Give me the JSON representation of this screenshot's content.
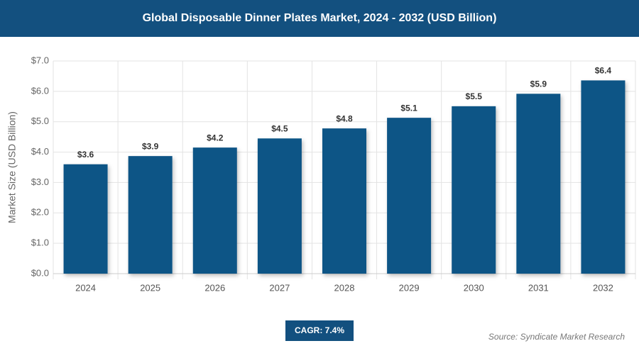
{
  "chart_data": {
    "type": "bar",
    "title": "Global Disposable Dinner Plates Market, 2024 - 2032 (USD Billion)",
    "y_label": "Market Size (USD Billion)",
    "categories": [
      "2024",
      "2025",
      "2026",
      "2027",
      "2028",
      "2029",
      "2030",
      "2031",
      "2032"
    ],
    "values": [
      3.6,
      3.87,
      4.15,
      4.45,
      4.78,
      5.13,
      5.51,
      5.92,
      6.36
    ],
    "value_labels": [
      "$3.6",
      "$3.9",
      "$4.2",
      "$4.5",
      "$4.8",
      "$5.1",
      "$5.5",
      "$5.9",
      "$6.4"
    ],
    "color": "#0d5486",
    "ylim": [
      0,
      7
    ],
    "yticks": [
      {
        "value": 0,
        "label": "$0.0"
      },
      {
        "value": 1,
        "label": "$1.0"
      },
      {
        "value": 2,
        "label": "$2.0"
      },
      {
        "value": 3,
        "label": "$3.0"
      },
      {
        "value": 4,
        "label": "$4.0"
      },
      {
        "value": 5,
        "label": "$5.0"
      },
      {
        "value": 6,
        "label": "$6.0"
      },
      {
        "value": 7,
        "label": "$7.0"
      }
    ],
    "grid": true,
    "cagr": "CAGR: 7.4%",
    "source": "Source: Syndicate Market Research"
  }
}
